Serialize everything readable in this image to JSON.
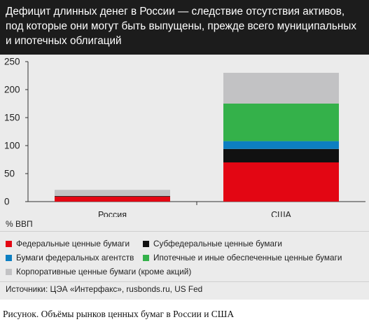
{
  "title": "Дефицит длинных денег в России — следствие отсутствия  активов, под которые они могут быть выпущены, прежде всего муниципальных и ипотечных облигаций",
  "chart_data": {
    "type": "bar",
    "stacked": true,
    "categories": [
      "Россия",
      "США"
    ],
    "series": [
      {
        "name": "Федеральные ценные бумаги",
        "color": "#e30613",
        "values": [
          9,
          70
        ]
      },
      {
        "name": "Субфедеральные ценные бумаги",
        "color": "#111111",
        "values": [
          1,
          24
        ]
      },
      {
        "name": "Бумаги федеральных агентств",
        "color": "#0d7fc2",
        "values": [
          0,
          14
        ]
      },
      {
        "name": "Ипотечные и иные обеспеченные ценные бумаги",
        "color": "#34b14a",
        "values": [
          0,
          67
        ]
      },
      {
        "name": "Корпоративные ценные бумаги (кроме акций)",
        "color": "#c2c2c4",
        "values": [
          11,
          55
        ]
      }
    ],
    "ylim": [
      0,
      250
    ],
    "yticks": [
      0,
      50,
      100,
      150,
      200,
      250
    ],
    "ylabel": "% ВВП",
    "grid": false,
    "legend_position": "bottom"
  },
  "source": "Источники: ЦЭА «Интерфакс», rusbonds.ru, US Fed",
  "caption": "Рисунок. Объёмы рынков ценных бумаг в России и США"
}
